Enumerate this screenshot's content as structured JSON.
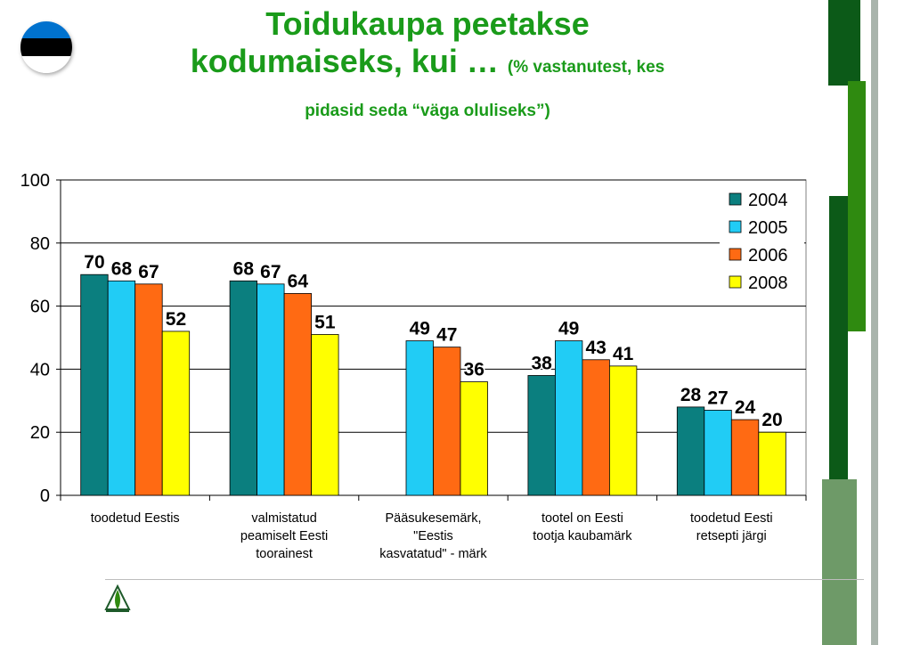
{
  "title": {
    "line1": "Toidukaupa peetakse",
    "line2": "kodumaiseks, kui …",
    "line2_sub": "(% vastanutest, kes",
    "line3": "pidasid seda “väga oluliseks”)"
  },
  "colors": {
    "title": "#1a9b1a",
    "flag": [
      "#0072ce",
      "#000000",
      "#ffffff"
    ],
    "deco_dark": "#0c5a18",
    "deco_mid": "#2f8a10",
    "deco_light": "#6e9a68"
  },
  "icons": {
    "logo": "logo-icon",
    "flag": "estonia-flag-icon"
  },
  "chart_data": {
    "type": "bar",
    "categories": [
      [
        "toodetud Eestis"
      ],
      [
        "valmistatud",
        "peamiselt Eesti",
        "toorainest"
      ],
      [
        "Pääsukesemärk,",
        "\"Eestis",
        "kasvatatud\" - märk"
      ],
      [
        "tootel on Eesti",
        "tootja kaubamärk"
      ],
      [
        "toodetud Eesti",
        "retsepti järgi"
      ]
    ],
    "series": [
      {
        "name": "2004",
        "color": "#0b7f7f",
        "values": [
          70,
          68,
          null,
          38,
          28
        ]
      },
      {
        "name": "2005",
        "color": "#21ccf5",
        "values": [
          68,
          67,
          49,
          49,
          27
        ]
      },
      {
        "name": "2006",
        "color": "#ff6a13",
        "values": [
          67,
          64,
          47,
          43,
          24
        ]
      },
      {
        "name": "2008",
        "color": "#ffff00",
        "values": [
          52,
          51,
          36,
          41,
          20
        ]
      }
    ],
    "ylim": [
      0,
      100
    ],
    "yticks": [
      0,
      20,
      40,
      60,
      80,
      100
    ],
    "grid": true,
    "legend": "top-right",
    "data_labels": true
  }
}
